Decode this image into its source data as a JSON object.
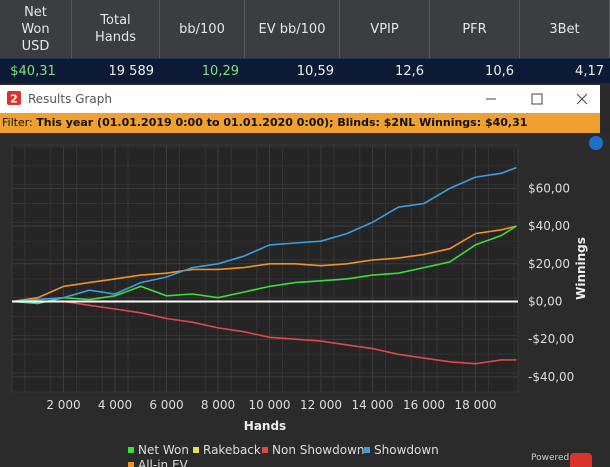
{
  "stats": {
    "headers": [
      "Net Won USD",
      "Total Hands",
      "bb/100",
      "EV bb/100",
      "VPIP",
      "PFR",
      "3Bet"
    ],
    "values": [
      "$40,31",
      "19 589",
      "10,29",
      "10,59",
      "12,6",
      "10,6",
      "4,17"
    ]
  },
  "window": {
    "title": "Results Graph"
  },
  "filter": {
    "label": "Filter:",
    "value": "This year (01.01.2019 0:00 to 01.01.2020 0:00); Blinds: $2NL Winnings: $40,31"
  },
  "graph": {
    "type": "line",
    "xlabel": "Hands",
    "ylabel": "Winnings",
    "x": [
      0,
      1000,
      2000,
      3000,
      4000,
      5000,
      6000,
      7000,
      8000,
      9000,
      10000,
      11000,
      12000,
      13000,
      14000,
      15000,
      16000,
      17000,
      18000,
      19000,
      19589
    ],
    "xlim": [
      0,
      19650
    ],
    "ylim": [
      -48,
      83
    ],
    "xticks": [
      {
        "value": 2000,
        "label": "2 000"
      },
      {
        "value": 4000,
        "label": "4 000"
      },
      {
        "value": 6000,
        "label": "6 000"
      },
      {
        "value": 8000,
        "label": "8 000"
      },
      {
        "value": 10000,
        "label": "10 000"
      },
      {
        "value": 12000,
        "label": "12 000"
      },
      {
        "value": 14000,
        "label": "14 000"
      },
      {
        "value": 16000,
        "label": "16 000"
      },
      {
        "value": 18000,
        "label": "18 000"
      }
    ],
    "yticks": [
      {
        "value": -40,
        "label": "-$40,00"
      },
      {
        "value": -20,
        "label": "-$20,00"
      },
      {
        "value": 0,
        "label": "$0,00"
      },
      {
        "value": 20,
        "label": "$20,00"
      },
      {
        "value": 40,
        "label": "$40,00"
      },
      {
        "value": 60,
        "label": "$60,00"
      }
    ],
    "grid": true,
    "series": [
      {
        "name": "Net Won",
        "color": "#3ddc3d",
        "values": [
          0,
          -1,
          2,
          1,
          3,
          8,
          3,
          4,
          2,
          5,
          8,
          10,
          11,
          12,
          14,
          15,
          18,
          21,
          30,
          35,
          40
        ]
      },
      {
        "name": "Rakeback",
        "color": "#e8e040",
        "values": [
          0,
          0,
          0,
          0,
          0,
          0,
          0,
          0,
          0,
          0,
          0,
          0,
          0,
          0,
          0,
          0,
          0,
          0,
          0,
          0,
          0
        ]
      },
      {
        "name": "Non Showdown",
        "color": "#e04848",
        "values": [
          0,
          0,
          0,
          -2,
          -4,
          -6,
          -9,
          -11,
          -14,
          -16,
          -19,
          -20,
          -21,
          -23,
          -25,
          -28,
          -30,
          -32,
          -33,
          -31,
          -31
        ]
      },
      {
        "name": "Showdown",
        "color": "#3a9ee0",
        "values": [
          0,
          1,
          2,
          6,
          4,
          10,
          13,
          18,
          20,
          24,
          30,
          31,
          32,
          36,
          42,
          50,
          52,
          60,
          66,
          68,
          71
        ]
      },
      {
        "name": "All-in EV",
        "color": "#f0922a",
        "values": [
          0,
          2,
          8,
          10,
          12,
          14,
          15,
          17,
          17,
          18,
          20,
          20,
          19,
          20,
          22,
          23,
          25,
          28,
          36,
          38,
          40
        ]
      }
    ],
    "powered_by": "Powered by"
  }
}
